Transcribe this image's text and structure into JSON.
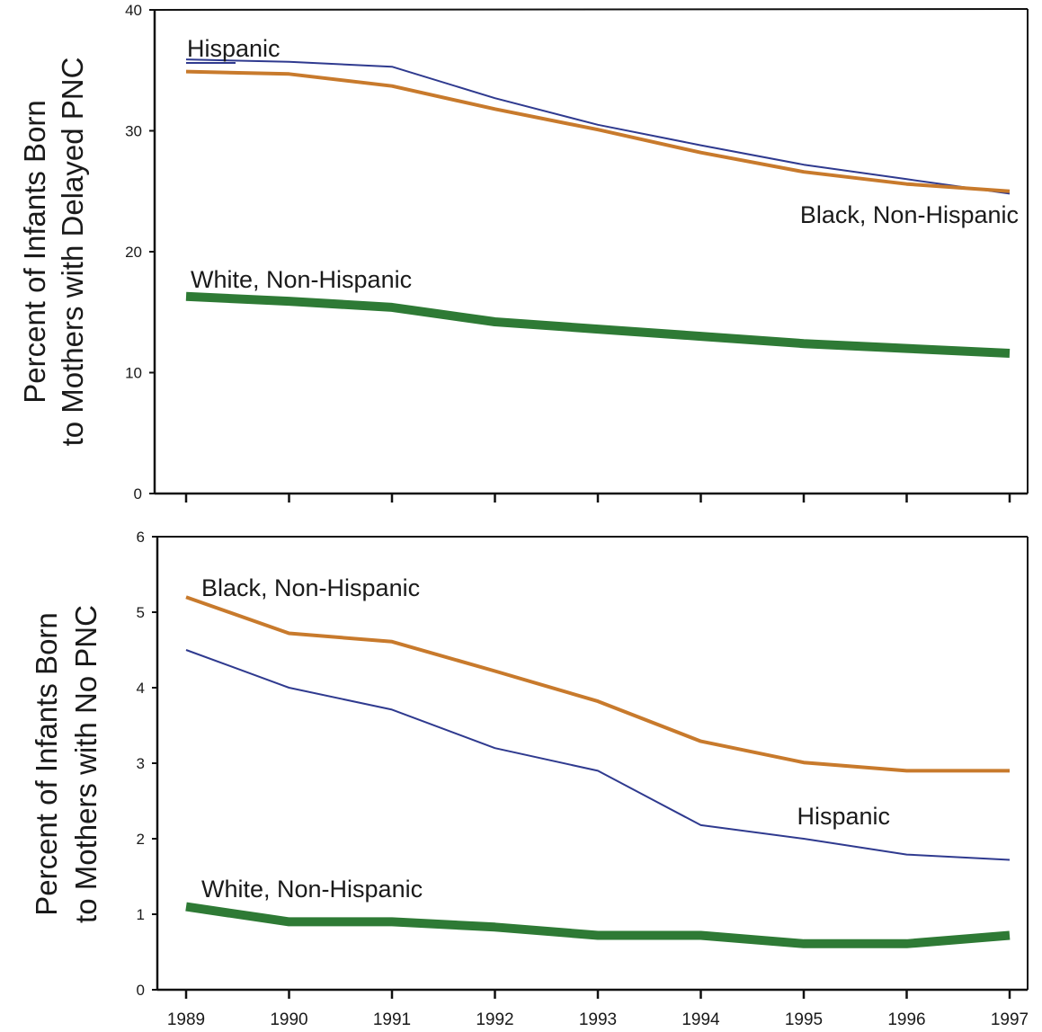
{
  "chart_data": [
    {
      "type": "line",
      "ylabel_lines": [
        "Percent of Infants Born",
        "to Mothers with Delayed PNC"
      ],
      "x": [
        1989,
        1990,
        1991,
        1992,
        1993,
        1994,
        1995,
        1996,
        1997
      ],
      "xlabels_shown": false,
      "ylim": [
        0,
        40
      ],
      "yticks": [
        0,
        10,
        20,
        30,
        40
      ],
      "grid": false,
      "series": [
        {
          "name": "Hispanic",
          "color": "#2f3a8f",
          "width": "thin",
          "values": [
            35.9,
            35.7,
            35.3,
            32.7,
            30.5,
            28.8,
            27.2,
            26.0,
            24.8
          ]
        },
        {
          "name": "Black, Non-Hispanic",
          "color": "#c87a2c",
          "width": "medium",
          "values": [
            34.9,
            34.7,
            33.7,
            31.8,
            30.1,
            28.2,
            26.6,
            25.6,
            25.0
          ]
        },
        {
          "name": "White, Non-Hispanic",
          "color": "#2e7a35",
          "width": "thick",
          "values": [
            16.3,
            15.9,
            15.4,
            14.2,
            13.6,
            13.0,
            12.4,
            12.0,
            11.6
          ]
        }
      ]
    },
    {
      "type": "line",
      "ylabel_lines": [
        "Percent of Infants Born",
        "to Mothers with No PNC"
      ],
      "x": [
        1989,
        1990,
        1991,
        1992,
        1993,
        1994,
        1995,
        1996,
        1997
      ],
      "xlabels_shown": true,
      "ylim": [
        0,
        6
      ],
      "yticks": [
        0,
        1,
        2,
        3,
        4,
        5,
        6
      ],
      "grid": false,
      "series": [
        {
          "name": "Black, Non-Hispanic",
          "color": "#c87a2c",
          "width": "medium",
          "values": [
            5.2,
            4.72,
            4.61,
            4.22,
            3.82,
            3.29,
            3.01,
            2.9,
            2.9
          ]
        },
        {
          "name": "Hispanic",
          "color": "#2f3a8f",
          "width": "thin",
          "values": [
            4.5,
            4.0,
            3.71,
            3.2,
            2.9,
            2.18,
            2.0,
            1.79,
            1.72
          ]
        },
        {
          "name": "White, Non-Hispanic",
          "color": "#2e7a35",
          "width": "thick",
          "values": [
            1.1,
            0.9,
            0.9,
            0.83,
            0.72,
            0.72,
            0.61,
            0.61,
            0.72
          ]
        }
      ]
    }
  ]
}
